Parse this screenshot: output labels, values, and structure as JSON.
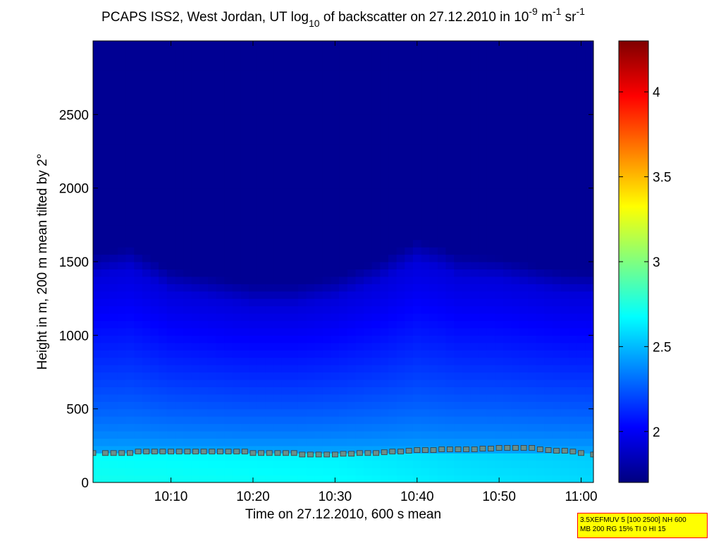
{
  "chart_data": {
    "type": "heatmap",
    "title": {
      "prefix": "PCAPS ISS2, West Jordan, UT log",
      "sub": "10",
      "middle": " of backscatter on 27.12.2010 in 10",
      "sup1": "-9",
      "m_unit": " m",
      "sup2": "-1",
      "sr_unit": " sr",
      "sup3": "-1"
    },
    "xlabel": "Time on 27.12.2010, 600 s mean",
    "ylabel": "Height in m, 200 m mean tilted by 2°",
    "x_ticks": [
      "10:10",
      "10:20",
      "10:30",
      "10:40",
      "10:50",
      "11:00"
    ],
    "x_tick_minutes": [
      10,
      20,
      30,
      40,
      50,
      60
    ],
    "xlim_minutes": [
      0.5,
      61.5
    ],
    "y_ticks": [
      "0",
      "500",
      "1000",
      "1500",
      "2000",
      "2500"
    ],
    "y_tick_values": [
      0,
      500,
      1000,
      1500,
      2000,
      2500
    ],
    "ylim": [
      0,
      3000
    ],
    "colorbar": {
      "ticks": [
        "2",
        "2.5",
        "3",
        "3.5",
        "4"
      ],
      "tick_values": [
        2,
        2.5,
        3,
        3.5,
        4
      ],
      "range": [
        1.7,
        4.3
      ],
      "colormap": "jet"
    },
    "background_value": 1.75,
    "surface_layer": {
      "height": 190,
      "minutes": [
        0.5,
        15,
        30,
        45,
        61.5
      ],
      "values": [
        2.72,
        2.7,
        2.68,
        2.62,
        2.58
      ]
    },
    "mixing_layer_top": {
      "minutes": [
        0.5,
        5,
        10,
        15,
        20,
        25,
        30,
        35,
        40,
        43,
        45,
        50,
        55,
        58,
        61.5
      ],
      "heights": [
        1400,
        1450,
        1300,
        1250,
        1200,
        1200,
        1250,
        1350,
        1500,
        1450,
        1400,
        1380,
        1320,
        1290,
        1280
      ]
    },
    "boundary_layer_height": {
      "name": "",
      "marker": "square",
      "minutes": [
        0.5,
        2,
        3,
        4,
        5,
        6,
        7,
        8,
        9,
        10,
        11,
        12,
        13,
        14,
        15,
        16,
        17,
        18,
        19,
        20,
        21,
        22,
        23,
        24,
        25,
        26,
        27,
        28,
        29,
        30,
        31,
        32,
        33,
        34,
        35,
        36,
        37,
        38,
        39,
        40,
        41,
        42,
        43,
        44,
        45,
        46,
        47,
        48,
        49,
        50,
        51,
        52,
        53,
        54,
        55,
        56,
        57,
        58,
        59,
        60,
        61.5
      ],
      "heights": [
        200,
        200,
        200,
        200,
        200,
        210,
        210,
        210,
        210,
        210,
        210,
        210,
        210,
        210,
        210,
        210,
        210,
        210,
        210,
        200,
        200,
        200,
        200,
        200,
        200,
        190,
        190,
        190,
        190,
        190,
        195,
        195,
        200,
        200,
        200,
        205,
        210,
        210,
        215,
        220,
        220,
        220,
        225,
        225,
        225,
        225,
        225,
        230,
        230,
        235,
        235,
        235,
        235,
        235,
        225,
        220,
        215,
        215,
        210,
        200,
        190
      ]
    }
  },
  "info_box": {
    "line1": "3.5XEFMUV 5 [100 2500] NH 600",
    "line2": "MB 200 RG 15% TI 0 HI 15"
  }
}
